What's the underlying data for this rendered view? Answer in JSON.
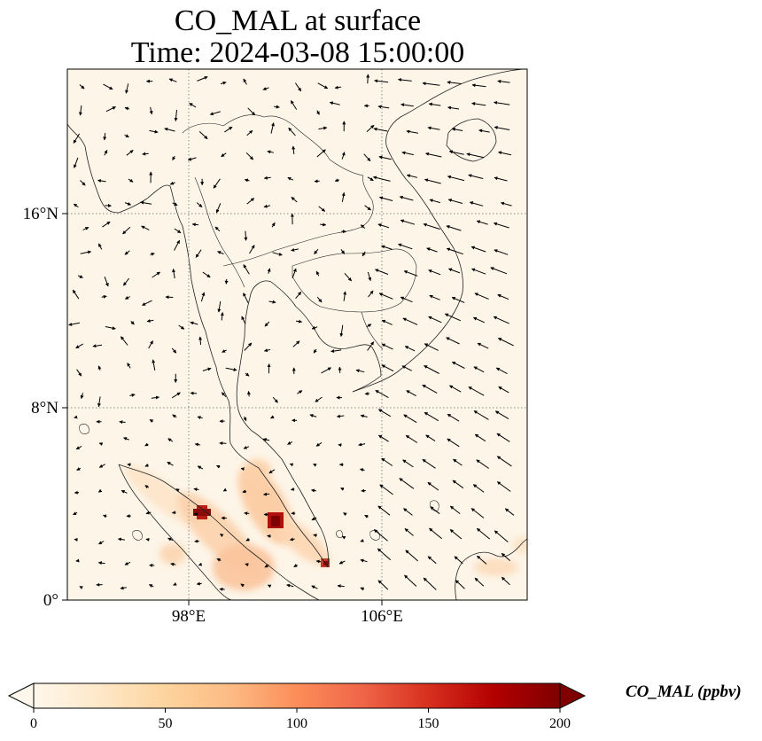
{
  "map": {
    "title_line1": "CO_MAL at surface",
    "title_line2": "Time: 2024-03-08 15:00:00",
    "lat_labels": [
      "16°N",
      "8°N",
      "0°"
    ],
    "lon_labels": [
      "98°E",
      "106°E"
    ],
    "gridline_style": "dotted",
    "field_cmap": "OrRd",
    "vectors": "wind arrows"
  },
  "colorbar": {
    "label": "CO_MAL (ppbv)",
    "ticks": [
      "0",
      "50",
      "100",
      "150",
      "200"
    ],
    "min": 0,
    "max": 200,
    "extend": "both",
    "colors": [
      "#fff7ec",
      "#fee8c8",
      "#fdd49e",
      "#fdbb84",
      "#fc8d59",
      "#ef6548",
      "#d7301f",
      "#b30000",
      "#7f0000"
    ]
  }
}
